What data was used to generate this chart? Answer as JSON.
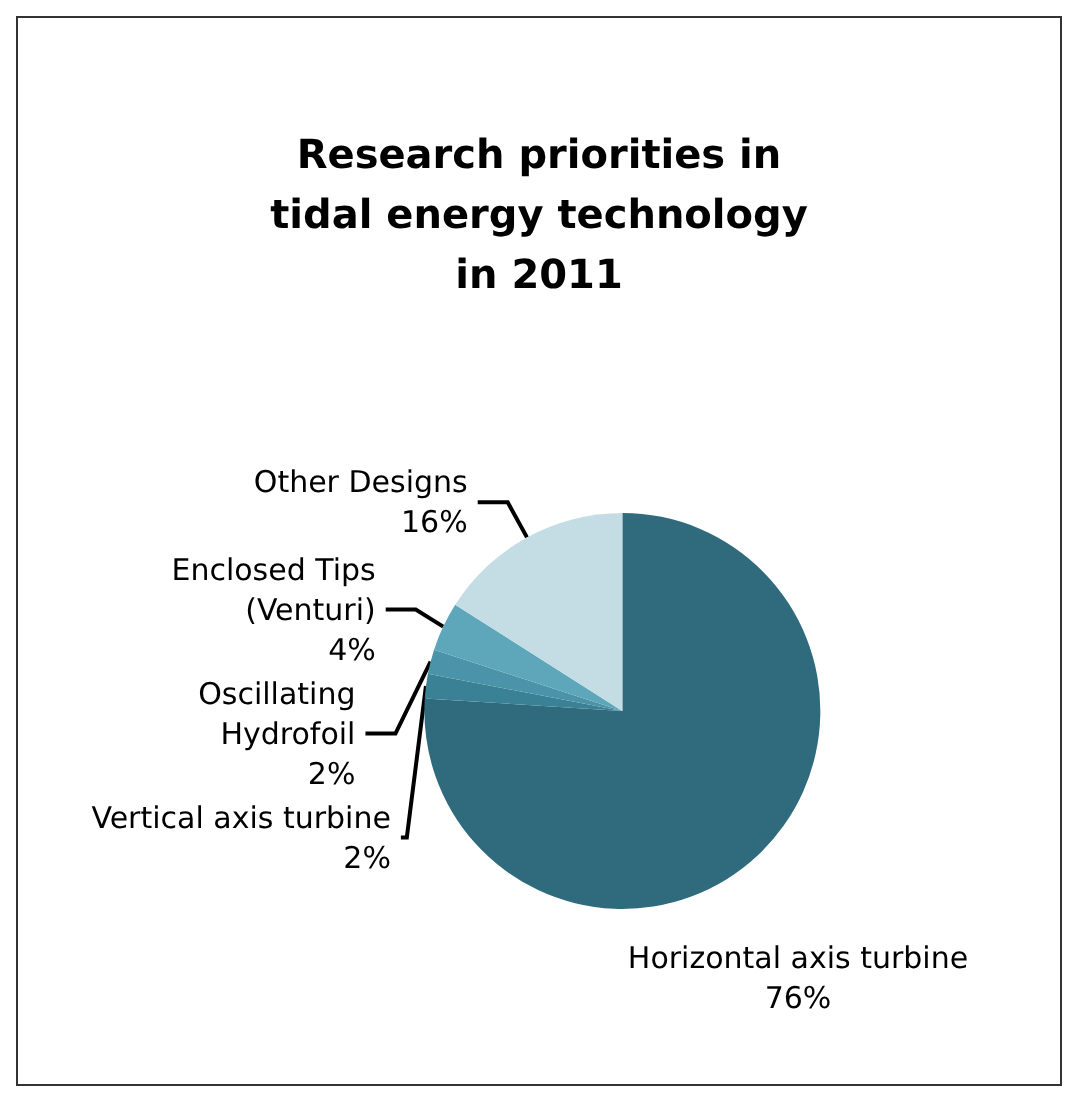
{
  "chart_data": {
    "type": "pie",
    "title": "Research priorities in\ntidal energy technology\nin 2011",
    "categories": [
      "Horizontal axis turbine",
      "Vertical axis turbine",
      "Oscillating\nHydrofoil",
      "Enclosed Tips\n(Venturi)",
      "Other Designs"
    ],
    "values": [
      76,
      2,
      2,
      4,
      16
    ],
    "colors": [
      "#2f6b7d",
      "#3b8196",
      "#4a93a8",
      "#5ea7ba",
      "#c4dde5"
    ],
    "value_labels": [
      "76%",
      "2%",
      "2%",
      "4%",
      "16%"
    ],
    "legend": false
  }
}
